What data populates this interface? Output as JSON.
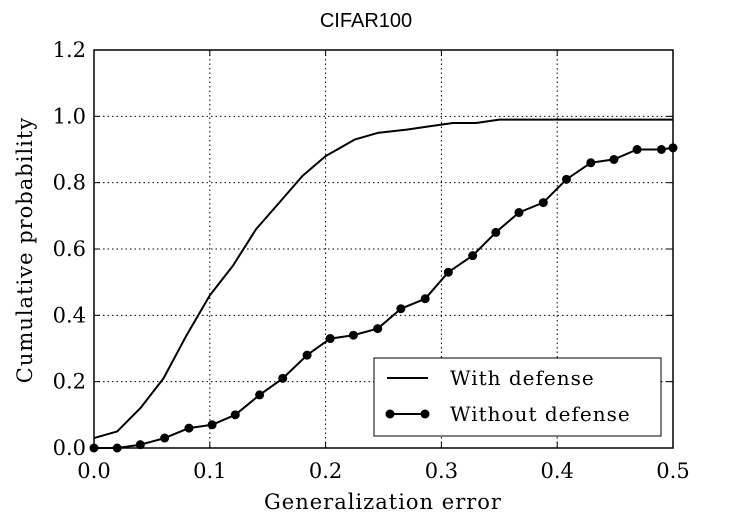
{
  "chart_data": {
    "type": "line",
    "title": "CIFAR100",
    "xlabel": "Generalization error",
    "ylabel": "Cumulative probability",
    "xlim": [
      0.0,
      0.5
    ],
    "ylim": [
      0.0,
      1.2
    ],
    "xticks": [
      "0.0",
      "0.1",
      "0.2",
      "0.3",
      "0.4",
      "0.5"
    ],
    "yticks": [
      "0.0",
      "0.2",
      "0.4",
      "0.6",
      "0.8",
      "1.0",
      "1.2"
    ],
    "grid": true,
    "legend_position": "lower-right",
    "series": [
      {
        "name": "With defense",
        "marker": "none",
        "color": "#000000",
        "points": [
          [
            0.0,
            0.03
          ],
          [
            0.02,
            0.05
          ],
          [
            0.04,
            0.12
          ],
          [
            0.06,
            0.21
          ],
          [
            0.08,
            0.34
          ],
          [
            0.1,
            0.46
          ],
          [
            0.12,
            0.55
          ],
          [
            0.14,
            0.66
          ],
          [
            0.16,
            0.74
          ],
          [
            0.18,
            0.82
          ],
          [
            0.2,
            0.88
          ],
          [
            0.225,
            0.93
          ],
          [
            0.245,
            0.95
          ],
          [
            0.27,
            0.96
          ],
          [
            0.29,
            0.97
          ],
          [
            0.31,
            0.98
          ],
          [
            0.33,
            0.98
          ],
          [
            0.35,
            0.99
          ],
          [
            0.4,
            0.99
          ],
          [
            0.45,
            0.99
          ],
          [
            0.5,
            0.99
          ]
        ]
      },
      {
        "name": "Without defense",
        "marker": "circle",
        "color": "#000000",
        "points": [
          [
            0.0,
            0.0
          ],
          [
            0.02,
            0.0
          ],
          [
            0.04,
            0.01
          ],
          [
            0.061,
            0.03
          ],
          [
            0.082,
            0.06
          ],
          [
            0.102,
            0.07
          ],
          [
            0.122,
            0.1
          ],
          [
            0.143,
            0.16
          ],
          [
            0.163,
            0.21
          ],
          [
            0.184,
            0.28
          ],
          [
            0.204,
            0.33
          ],
          [
            0.224,
            0.34
          ],
          [
            0.245,
            0.36
          ],
          [
            0.265,
            0.42
          ],
          [
            0.286,
            0.45
          ],
          [
            0.306,
            0.53
          ],
          [
            0.327,
            0.58
          ],
          [
            0.347,
            0.65
          ],
          [
            0.367,
            0.71
          ],
          [
            0.388,
            0.74
          ],
          [
            0.408,
            0.81
          ],
          [
            0.429,
            0.86
          ],
          [
            0.449,
            0.87
          ],
          [
            0.469,
            0.9
          ],
          [
            0.49,
            0.9
          ],
          [
            0.5,
            0.905
          ]
        ]
      }
    ]
  }
}
